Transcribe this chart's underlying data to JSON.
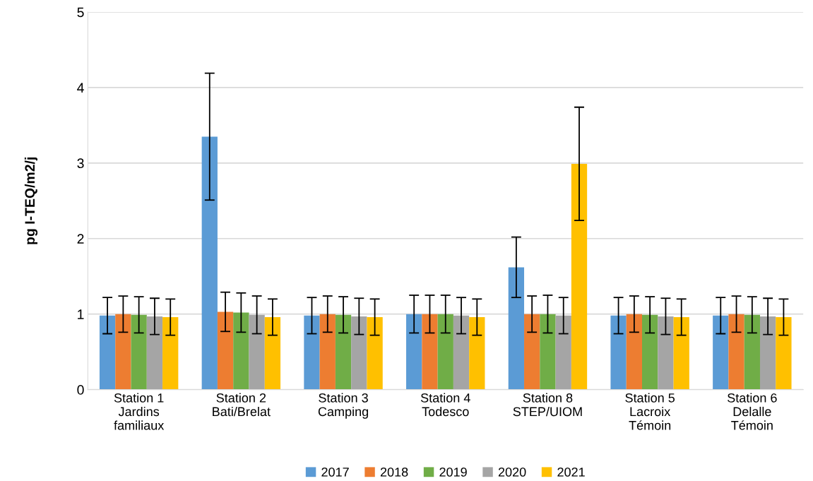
{
  "chart_data": {
    "type": "bar",
    "ylabel": "pg I-TEQ/m2/j",
    "categories": [
      "Station 1\nJardins\nfamiliaux",
      "Station 2\nBati/Brelat",
      "Station 3\nCamping",
      "Station 4\nTodesco",
      "Station 8\nSTEP/UIOM",
      "Station 5\nLacroix\nTémoin",
      "Station 6\nDelalle\nTémoin"
    ],
    "series": [
      {
        "name": "2017",
        "color": "#5b9bd5",
        "values": [
          0.98,
          3.35,
          0.98,
          1.0,
          1.62,
          0.98,
          0.98
        ],
        "errors": [
          0.24,
          0.84,
          0.24,
          0.25,
          0.4,
          0.24,
          0.24
        ]
      },
      {
        "name": "2018",
        "color": "#ed7d31",
        "values": [
          1.0,
          1.03,
          1.0,
          1.0,
          1.0,
          1.0,
          1.0
        ],
        "errors": [
          0.24,
          0.26,
          0.24,
          0.25,
          0.24,
          0.24,
          0.24
        ]
      },
      {
        "name": "2019",
        "color": "#70ad47",
        "values": [
          0.99,
          1.02,
          0.99,
          1.0,
          1.0,
          0.99,
          0.99
        ],
        "errors": [
          0.24,
          0.26,
          0.24,
          0.25,
          0.25,
          0.24,
          0.24
        ]
      },
      {
        "name": "2020",
        "color": "#a5a5a5",
        "values": [
          0.97,
          0.99,
          0.97,
          0.98,
          0.98,
          0.97,
          0.97
        ],
        "errors": [
          0.24,
          0.25,
          0.24,
          0.24,
          0.24,
          0.24,
          0.24
        ]
      },
      {
        "name": "2021",
        "color": "#ffc000",
        "values": [
          0.96,
          0.96,
          0.96,
          0.96,
          2.99,
          0.96,
          0.96
        ],
        "errors": [
          0.24,
          0.24,
          0.24,
          0.24,
          0.75,
          0.24,
          0.24
        ]
      }
    ],
    "ylim": [
      0,
      5
    ],
    "yticks": [
      0,
      1,
      2,
      3,
      4,
      5
    ],
    "grid": "y",
    "legend": "bottom"
  }
}
